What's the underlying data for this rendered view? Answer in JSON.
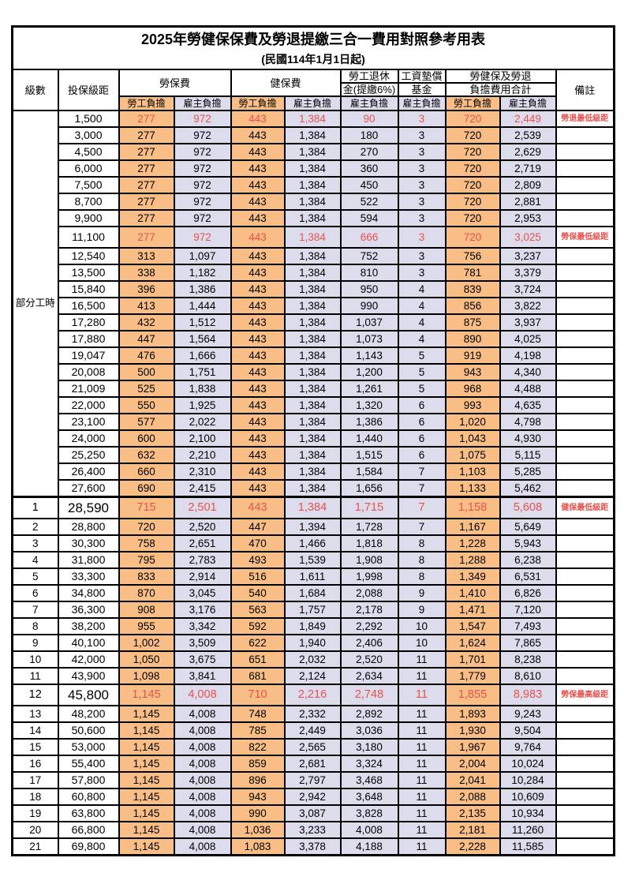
{
  "title": "2025年勞健保保費及勞退提繳三合一費用對照參考用表",
  "subtitle": "(民國114年1月1日起)",
  "colors": {
    "employee_bg": "#F8BE86",
    "employer_bg": "#DDDCEC",
    "highlight_text": "#E8514D",
    "grid": "#000000"
  },
  "header": {
    "level": "級數",
    "bracket": "投保級距",
    "labor_ins": "勞保費",
    "health_ins": "健保費",
    "pension_line1": "勞工退休",
    "pension_line2": "金(提繳6%)",
    "wage_fund_line1": "工資墊償",
    "wage_fund_line2": "基金",
    "total_line1": "勞健保及勞退",
    "total_line2": "負擔費用合計",
    "note": "備註",
    "employee": "勞工負擔",
    "employer": "雇主負擔"
  },
  "part_time_label": "部分工時",
  "part_time_rowspan": 23,
  "value_column_types": [
    "emp",
    "er",
    "emp",
    "er",
    "er",
    "er",
    "emp",
    "er"
  ],
  "rows": [
    {
      "level": "",
      "bracket": "1,500",
      "values": [
        "277",
        "972",
        "443",
        "1,384",
        "90",
        "3",
        "720",
        "2,449"
      ],
      "note": "勞退最低級距",
      "red": true
    },
    {
      "level": "",
      "bracket": "3,000",
      "values": [
        "277",
        "972",
        "443",
        "1,384",
        "180",
        "3",
        "720",
        "2,539"
      ],
      "note": ""
    },
    {
      "level": "",
      "bracket": "4,500",
      "values": [
        "277",
        "972",
        "443",
        "1,384",
        "270",
        "3",
        "720",
        "2,629"
      ],
      "note": ""
    },
    {
      "level": "",
      "bracket": "6,000",
      "values": [
        "277",
        "972",
        "443",
        "1,384",
        "360",
        "3",
        "720",
        "2,719"
      ],
      "note": ""
    },
    {
      "level": "",
      "bracket": "7,500",
      "values": [
        "277",
        "972",
        "443",
        "1,384",
        "450",
        "3",
        "720",
        "2,809"
      ],
      "note": ""
    },
    {
      "level": "",
      "bracket": "8,700",
      "values": [
        "277",
        "972",
        "443",
        "1,384",
        "522",
        "3",
        "720",
        "2,881"
      ],
      "note": ""
    },
    {
      "level": "",
      "bracket": "9,900",
      "values": [
        "277",
        "972",
        "443",
        "1,384",
        "594",
        "3",
        "720",
        "2,953"
      ],
      "note": ""
    },
    {
      "level": "",
      "bracket": "11,100",
      "values": [
        "277",
        "972",
        "443",
        "1,384",
        "666",
        "3",
        "720",
        "3,025"
      ],
      "note": "勞保最低級距",
      "red": true,
      "tall": true
    },
    {
      "level": "",
      "bracket": "12,540",
      "values": [
        "313",
        "1,097",
        "443",
        "1,384",
        "752",
        "3",
        "756",
        "3,237"
      ],
      "note": ""
    },
    {
      "level": "",
      "bracket": "13,500",
      "values": [
        "338",
        "1,182",
        "443",
        "1,384",
        "810",
        "3",
        "781",
        "3,379"
      ],
      "note": ""
    },
    {
      "level": "",
      "bracket": "15,840",
      "values": [
        "396",
        "1,386",
        "443",
        "1,384",
        "950",
        "4",
        "839",
        "3,724"
      ],
      "note": ""
    },
    {
      "level": "",
      "bracket": "16,500",
      "values": [
        "413",
        "1,444",
        "443",
        "1,384",
        "990",
        "4",
        "856",
        "3,822"
      ],
      "note": ""
    },
    {
      "level": "",
      "bracket": "17,280",
      "values": [
        "432",
        "1,512",
        "443",
        "1,384",
        "1,037",
        "4",
        "875",
        "3,937"
      ],
      "note": ""
    },
    {
      "level": "",
      "bracket": "17,880",
      "values": [
        "447",
        "1,564",
        "443",
        "1,384",
        "1,073",
        "4",
        "890",
        "4,025"
      ],
      "note": ""
    },
    {
      "level": "",
      "bracket": "19,047",
      "values": [
        "476",
        "1,666",
        "443",
        "1,384",
        "1,143",
        "5",
        "919",
        "4,198"
      ],
      "note": ""
    },
    {
      "level": "",
      "bracket": "20,008",
      "values": [
        "500",
        "1,751",
        "443",
        "1,384",
        "1,200",
        "5",
        "943",
        "4,340"
      ],
      "note": ""
    },
    {
      "level": "",
      "bracket": "21,009",
      "values": [
        "525",
        "1,838",
        "443",
        "1,384",
        "1,261",
        "5",
        "968",
        "4,488"
      ],
      "note": ""
    },
    {
      "level": "",
      "bracket": "22,000",
      "values": [
        "550",
        "1,925",
        "443",
        "1,384",
        "1,320",
        "6",
        "993",
        "4,635"
      ],
      "note": ""
    },
    {
      "level": "",
      "bracket": "23,100",
      "values": [
        "577",
        "2,022",
        "443",
        "1,384",
        "1,386",
        "6",
        "1,020",
        "4,798"
      ],
      "note": ""
    },
    {
      "level": "",
      "bracket": "24,000",
      "values": [
        "600",
        "2,100",
        "443",
        "1,384",
        "1,440",
        "6",
        "1,043",
        "4,930"
      ],
      "note": ""
    },
    {
      "level": "",
      "bracket": "25,250",
      "values": [
        "632",
        "2,210",
        "443",
        "1,384",
        "1,515",
        "6",
        "1,075",
        "5,115"
      ],
      "note": ""
    },
    {
      "level": "",
      "bracket": "26,400",
      "values": [
        "660",
        "2,310",
        "443",
        "1,384",
        "1,584",
        "7",
        "1,103",
        "5,285"
      ],
      "note": ""
    },
    {
      "level": "",
      "bracket": "27,600",
      "values": [
        "690",
        "2,415",
        "443",
        "1,384",
        "1,656",
        "7",
        "1,133",
        "5,462"
      ],
      "note": ""
    },
    {
      "level": "1",
      "bracket": "28,590",
      "values": [
        "715",
        "2,501",
        "443",
        "1,384",
        "1,715",
        "7",
        "1,158",
        "5,608"
      ],
      "note": "健保最低級距",
      "red": true,
      "tall": true,
      "big": true,
      "section": true
    },
    {
      "level": "2",
      "bracket": "28,800",
      "values": [
        "720",
        "2,520",
        "447",
        "1,394",
        "1,728",
        "7",
        "1,167",
        "5,649"
      ],
      "note": ""
    },
    {
      "level": "3",
      "bracket": "30,300",
      "values": [
        "758",
        "2,651",
        "470",
        "1,466",
        "1,818",
        "8",
        "1,228",
        "5,943"
      ],
      "note": ""
    },
    {
      "level": "4",
      "bracket": "31,800",
      "values": [
        "795",
        "2,783",
        "493",
        "1,539",
        "1,908",
        "8",
        "1,288",
        "6,238"
      ],
      "note": ""
    },
    {
      "level": "5",
      "bracket": "33,300",
      "values": [
        "833",
        "2,914",
        "516",
        "1,611",
        "1,998",
        "8",
        "1,349",
        "6,531"
      ],
      "note": ""
    },
    {
      "level": "6",
      "bracket": "34,800",
      "values": [
        "870",
        "3,045",
        "540",
        "1,684",
        "2,088",
        "9",
        "1,410",
        "6,826"
      ],
      "note": ""
    },
    {
      "level": "7",
      "bracket": "36,300",
      "values": [
        "908",
        "3,176",
        "563",
        "1,757",
        "2,178",
        "9",
        "1,471",
        "7,120"
      ],
      "note": ""
    },
    {
      "level": "8",
      "bracket": "38,200",
      "values": [
        "955",
        "3,342",
        "592",
        "1,849",
        "2,292",
        "10",
        "1,547",
        "7,493"
      ],
      "note": ""
    },
    {
      "level": "9",
      "bracket": "40,100",
      "values": [
        "1,002",
        "3,509",
        "622",
        "1,940",
        "2,406",
        "10",
        "1,624",
        "7,865"
      ],
      "note": ""
    },
    {
      "level": "10",
      "bracket": "42,000",
      "values": [
        "1,050",
        "3,675",
        "651",
        "2,032",
        "2,520",
        "11",
        "1,701",
        "8,238"
      ],
      "note": ""
    },
    {
      "level": "11",
      "bracket": "43,900",
      "values": [
        "1,098",
        "3,841",
        "681",
        "2,124",
        "2,634",
        "11",
        "1,779",
        "8,610"
      ],
      "note": ""
    },
    {
      "level": "12",
      "bracket": "45,800",
      "values": [
        "1,145",
        "4,008",
        "710",
        "2,216",
        "2,748",
        "11",
        "1,855",
        "8,983"
      ],
      "note": "勞保最高級距",
      "red": true,
      "tall": true,
      "big": true
    },
    {
      "level": "13",
      "bracket": "48,200",
      "values": [
        "1,145",
        "4,008",
        "748",
        "2,332",
        "2,892",
        "11",
        "1,893",
        "9,243"
      ],
      "note": ""
    },
    {
      "level": "14",
      "bracket": "50,600",
      "values": [
        "1,145",
        "4,008",
        "785",
        "2,449",
        "3,036",
        "11",
        "1,930",
        "9,504"
      ],
      "note": ""
    },
    {
      "level": "15",
      "bracket": "53,000",
      "values": [
        "1,145",
        "4,008",
        "822",
        "2,565",
        "3,180",
        "11",
        "1,967",
        "9,764"
      ],
      "note": ""
    },
    {
      "level": "16",
      "bracket": "55,400",
      "values": [
        "1,145",
        "4,008",
        "859",
        "2,681",
        "3,324",
        "11",
        "2,004",
        "10,024"
      ],
      "note": ""
    },
    {
      "level": "17",
      "bracket": "57,800",
      "values": [
        "1,145",
        "4,008",
        "896",
        "2,797",
        "3,468",
        "11",
        "2,041",
        "10,284"
      ],
      "note": ""
    },
    {
      "level": "18",
      "bracket": "60,800",
      "values": [
        "1,145",
        "4,008",
        "943",
        "2,942",
        "3,648",
        "11",
        "2,088",
        "10,609"
      ],
      "note": ""
    },
    {
      "level": "19",
      "bracket": "63,800",
      "values": [
        "1,145",
        "4,008",
        "990",
        "3,087",
        "3,828",
        "11",
        "2,135",
        "10,934"
      ],
      "note": ""
    },
    {
      "level": "20",
      "bracket": "66,800",
      "values": [
        "1,145",
        "4,008",
        "1,036",
        "3,233",
        "4,008",
        "11",
        "2,181",
        "11,260"
      ],
      "note": ""
    },
    {
      "level": "21",
      "bracket": "69,800",
      "values": [
        "1,145",
        "4,008",
        "1,083",
        "3,378",
        "4,188",
        "11",
        "2,228",
        "11,585"
      ],
      "note": ""
    }
  ]
}
